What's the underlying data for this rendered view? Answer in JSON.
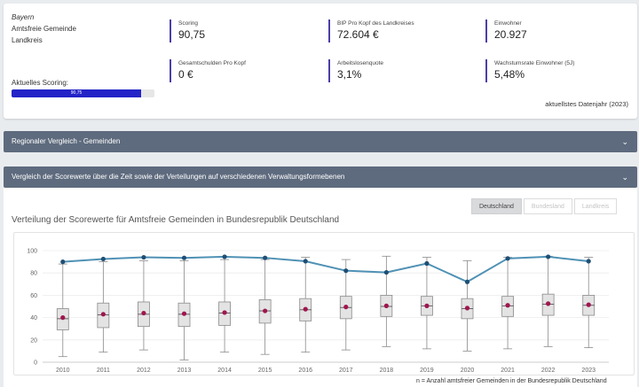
{
  "summary": {
    "state": "Bayern",
    "type": "Amtsfreie Gemeinde",
    "district": "Landkreis",
    "scoring_label": "Aktuelles Scoring:",
    "scoring_bar_text": "90,75",
    "scoring_fraction": 0.9075,
    "metrics": [
      {
        "label": "Scoring",
        "value": "90,75"
      },
      {
        "label": "BIP Pro Kopf des Landkreises",
        "value": "72.604 €"
      },
      {
        "label": "Einwohner",
        "value": "20.927"
      },
      {
        "label": "Gesamtschulden Pro Kopf",
        "value": "0 €"
      },
      {
        "label": "Arbeitslosenquote",
        "value": "3,1%"
      },
      {
        "label": "Wachstumsrate Einwohner (5J)",
        "value": "5,48%"
      }
    ],
    "data_year": "aktuellstes Datenjahr (2023)"
  },
  "sections": {
    "regional": "Regionaler Vergleich - Gemeinden",
    "comparison": "Vergleich der Scorewerte über die Zeit sowie der Verteilungen auf verschiedenen Verwaltungsformebenen"
  },
  "chart_section": {
    "title": "Verteilung der Scorewerte für Amtsfreie Gemeinden in Bundesrepublik Deutschland",
    "tabs": [
      "Deutschland",
      "Bundesland",
      "Landkreis"
    ],
    "active_tab": "Deutschland",
    "note": "n = Anzahl amtsfreier Gemeinden in der Bundesrepublik Deutschland"
  },
  "chart_data": {
    "type": "box",
    "x": [
      "2010",
      "2011",
      "2012",
      "2013",
      "2014",
      "2015",
      "2016",
      "2017",
      "2018",
      "2019",
      "2020",
      "2021",
      "2022",
      "2023"
    ],
    "ylim": [
      0,
      100
    ],
    "yticks": [
      0,
      20,
      40,
      60,
      80,
      100
    ],
    "line_values": [
      90,
      92.5,
      94,
      93.5,
      94.5,
      93.5,
      90.5,
      82,
      80.5,
      88.5,
      72,
      93,
      94.5,
      90.5
    ],
    "boxes": [
      {
        "min": 5,
        "q1": 29,
        "median": 39,
        "q3": 48,
        "max": 88,
        "mean": 40
      },
      {
        "min": 9,
        "q1": 31,
        "median": 42.5,
        "q3": 53,
        "max": 90,
        "mean": 43
      },
      {
        "min": 11,
        "q1": 32,
        "median": 43,
        "q3": 54,
        "max": 91,
        "mean": 44
      },
      {
        "min": 2,
        "q1": 32,
        "median": 43,
        "q3": 53,
        "max": 91,
        "mean": 43.5
      },
      {
        "min": 9,
        "q1": 33,
        "median": 44,
        "q3": 54,
        "max": 92,
        "mean": 44.5
      },
      {
        "min": 7,
        "q1": 35,
        "median": 46,
        "q3": 56,
        "max": 92,
        "mean": 46
      },
      {
        "min": 9,
        "q1": 37,
        "median": 47,
        "q3": 57,
        "max": 94,
        "mean": 47.5
      },
      {
        "min": 11,
        "q1": 39,
        "median": 49,
        "q3": 59,
        "max": 92,
        "mean": 49.5
      },
      {
        "min": 14,
        "q1": 41,
        "median": 50,
        "q3": 60,
        "max": 95,
        "mean": 50.5
      },
      {
        "min": 12,
        "q1": 42,
        "median": 50.5,
        "q3": 59,
        "max": 94,
        "mean": 50.5
      },
      {
        "min": 10,
        "q1": 39,
        "median": 48,
        "q3": 57,
        "max": 91,
        "mean": 48.5
      },
      {
        "min": 12,
        "q1": 41,
        "median": 50.5,
        "q3": 59,
        "max": 94,
        "mean": 51
      },
      {
        "min": 14,
        "q1": 42,
        "median": 52,
        "q3": 61,
        "max": 95,
        "mean": 52.5
      },
      {
        "min": 13,
        "q1": 42,
        "median": 51,
        "q3": 60,
        "max": 94,
        "mean": 51.5
      }
    ],
    "colors": {
      "line": "#4f91b5",
      "marker": "#1f4f75",
      "mean": "#a0154f",
      "box": "#e3e3e3",
      "box_stroke": "#8a8a8a"
    }
  }
}
